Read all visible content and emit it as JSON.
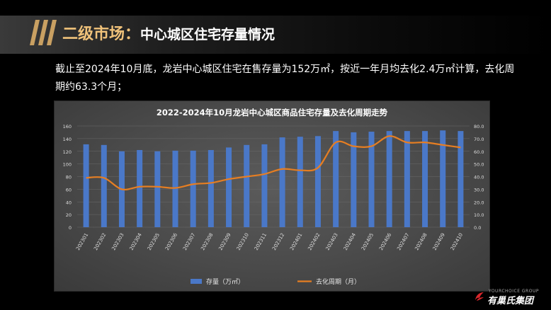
{
  "header": {
    "title_prefix": "二级市场：",
    "title_main": "中心城区住宅存量情况"
  },
  "summary": {
    "text": "截止至2024年10月底，龙岩中心城区住宅在售存量为152万㎡，按近一年月均去化2.4万㎡计算，去化周期约63.3个月；"
  },
  "colors": {
    "title_accent": "#f0c27a",
    "bar": "#4a78c8",
    "line": "#e67e22",
    "brand_red": "#d9262b"
  },
  "chart_data": {
    "type": "bar",
    "title": "2022-2024年10月龙岩中心城区商品住宅存量及去化周期走势",
    "categories": [
      "202301",
      "202302",
      "202303",
      "202304",
      "202305",
      "202306",
      "202307",
      "202308",
      "202309",
      "202310",
      "202311",
      "202312",
      "202401",
      "202402",
      "202403",
      "202404",
      "202405",
      "202406",
      "202407",
      "202408",
      "202409",
      "202410"
    ],
    "series": [
      {
        "name": "存量（万㎡）",
        "type": "bar",
        "axis": "left",
        "values": [
          131,
          130,
          120,
          122,
          120,
          121,
          121,
          122,
          126,
          130,
          131,
          142,
          143,
          144,
          152,
          150,
          151,
          152,
          152,
          152,
          153,
          152
        ]
      },
      {
        "name": "去化周期（月）",
        "type": "line",
        "axis": "right",
        "values": [
          39,
          39,
          30,
          32,
          32,
          31,
          34,
          35,
          38,
          40,
          42,
          46,
          45,
          47,
          67,
          64,
          64,
          72,
          67,
          67,
          65,
          63
        ]
      }
    ],
    "ylim_left": [
      0,
      160
    ],
    "yticks_left": [
      "0",
      "20",
      "40",
      "60",
      "80",
      "100",
      "120",
      "140",
      "160"
    ],
    "ylim_right": [
      0,
      80
    ],
    "yticks_right": [
      "0.0",
      "10.0",
      "20.0",
      "30.0",
      "40.0",
      "50.0",
      "60.0",
      "70.0",
      "80.0"
    ],
    "grid": true,
    "legend_position": "bottom"
  },
  "logo": {
    "subtitle": "YOURCHOICE GROUP",
    "name": "有巢氏集团"
  }
}
